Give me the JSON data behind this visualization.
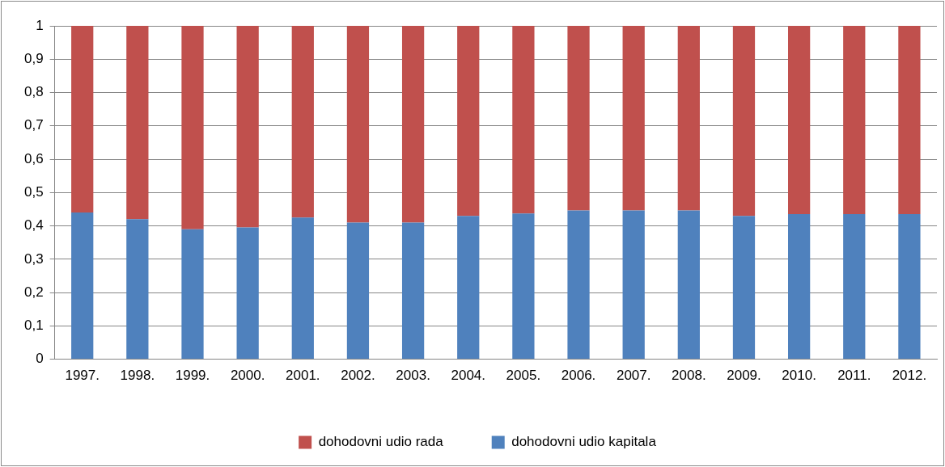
{
  "chart_data": {
    "type": "bar",
    "stacked": true,
    "categories": [
      "1997.",
      "1998.",
      "1999.",
      "2000.",
      "2001.",
      "2002.",
      "2003.",
      "2004.",
      "2005.",
      "2006.",
      "2007.",
      "2008.",
      "2009.",
      "2010.",
      "2011.",
      "2012."
    ],
    "series": [
      {
        "name": "dohodovni udio kapitala",
        "color": "#4f81bd",
        "values": [
          0.44,
          0.42,
          0.39,
          0.395,
          0.425,
          0.41,
          0.41,
          0.43,
          0.437,
          0.446,
          0.446,
          0.446,
          0.43,
          0.435,
          0.435,
          0.435
        ]
      },
      {
        "name": "dohodovni udio rada",
        "color": "#c0504d",
        "values": [
          0.56,
          0.58,
          0.61,
          0.605,
          0.575,
          0.59,
          0.59,
          0.57,
          0.563,
          0.554,
          0.554,
          0.554,
          0.57,
          0.565,
          0.565,
          0.565
        ]
      }
    ],
    "ylim": [
      0,
      1
    ],
    "yticks": [
      0,
      {
        "value": 0.1,
        "label": "0,1"
      },
      {
        "value": 0.2,
        "label": "0,2"
      },
      {
        "value": 0.3,
        "label": "0,3"
      },
      {
        "value": 0.4,
        "label": "0,4"
      },
      {
        "value": 0.5,
        "label": "0,5"
      },
      {
        "value": 0.6,
        "label": "0,6"
      },
      {
        "value": 0.7,
        "label": "0,7"
      },
      {
        "value": 0.8,
        "label": "0,8"
      },
      {
        "value": 0.9,
        "label": "0,9"
      },
      1
    ],
    "grid": "y",
    "legend": "bottom"
  }
}
